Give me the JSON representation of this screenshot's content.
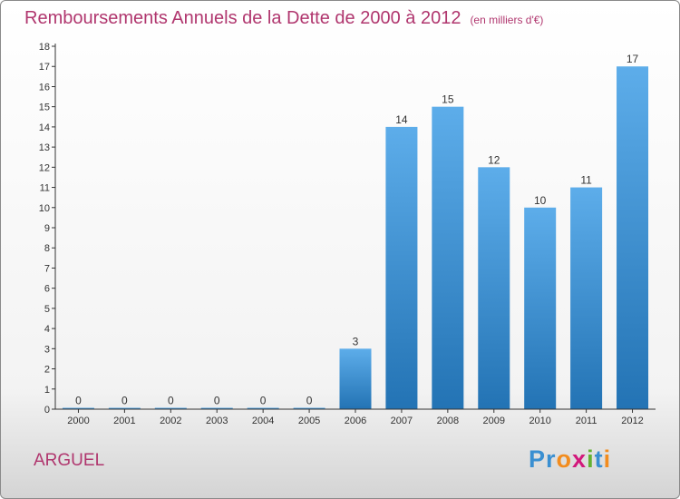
{
  "title": "Remboursements Annuels de la Dette de 2000 à 2012",
  "unit": "(en milliers d'€)",
  "commune": "ARGUEL",
  "logo": {
    "letters": [
      {
        "ch": "P",
        "color": "#3a8fd1"
      },
      {
        "ch": "r",
        "color": "#3a8fd1"
      },
      {
        "ch": "o",
        "color": "#f28c1e"
      },
      {
        "ch": "x",
        "color": "#d2187b"
      },
      {
        "ch": "i",
        "color": "#63b132"
      },
      {
        "ch": "t",
        "color": "#3a8fd1"
      },
      {
        "ch": "i",
        "color": "#f28c1e"
      }
    ]
  },
  "colors": {
    "title": "#b0366e",
    "bar_top": "#5dadea",
    "bar_bottom": "#2373b4",
    "axis": "#333333"
  },
  "chart_data": {
    "type": "bar",
    "categories": [
      "2000",
      "2001",
      "2002",
      "2003",
      "2004",
      "2005",
      "2006",
      "2007",
      "2008",
      "2009",
      "2010",
      "2011",
      "2012"
    ],
    "values": [
      0,
      0,
      0,
      0,
      0,
      0,
      3,
      14,
      15,
      12,
      10,
      11,
      17
    ],
    "data_labels": [
      "0",
      "0",
      "0",
      "0",
      "0",
      "0",
      "3",
      "14",
      "15",
      "12",
      "10",
      "11",
      "17"
    ],
    "yticks": [
      0,
      1,
      2,
      3,
      4,
      5,
      6,
      7,
      8,
      9,
      10,
      11,
      12,
      13,
      14,
      15,
      16,
      17,
      18
    ],
    "ylim": [
      0,
      18
    ],
    "grid": false,
    "legend": "none"
  }
}
